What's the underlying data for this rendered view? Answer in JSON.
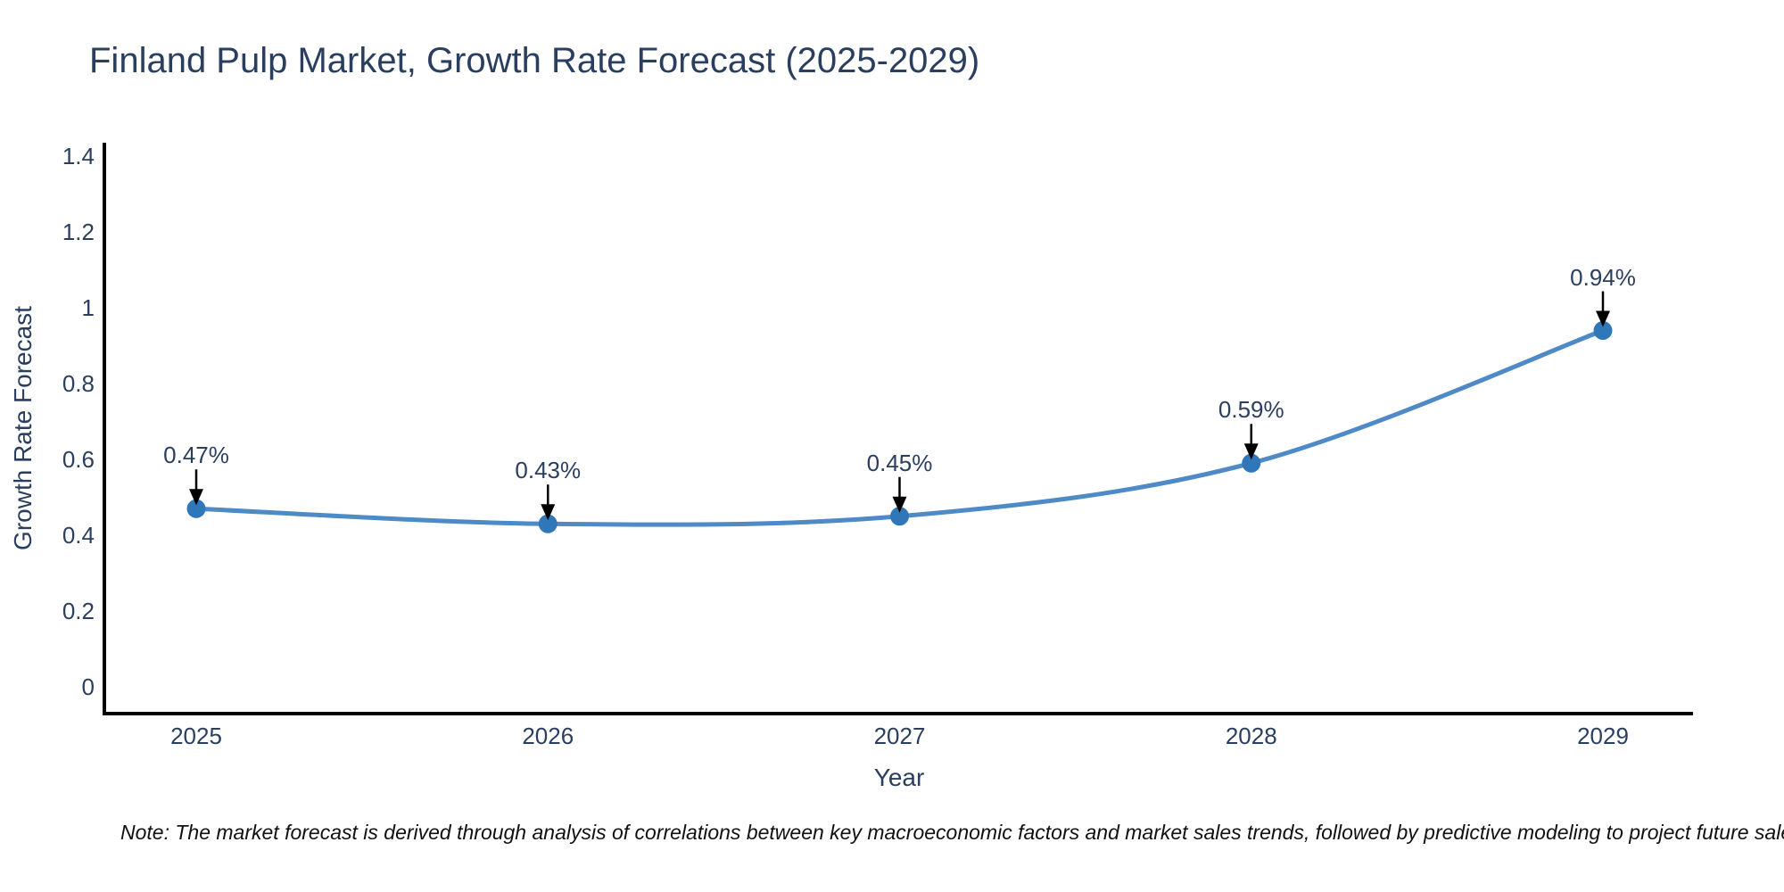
{
  "note": "Note: The market forecast is derived through analysis of correlations between key macroeconomic factors and market sales trends, followed by predictive modeling to project future sales",
  "chart_data": {
    "type": "line",
    "title": "Finland Pulp Market, Growth Rate Forecast (2025-2029)",
    "xlabel": "Year",
    "ylabel": "Growth Rate Forecast",
    "categories": [
      "2025",
      "2026",
      "2027",
      "2028",
      "2029"
    ],
    "values": [
      0.47,
      0.43,
      0.45,
      0.59,
      0.94
    ],
    "point_labels": [
      "0.47%",
      "0.43%",
      "0.45%",
      "0.59%",
      "0.94%"
    ],
    "ylim": [
      0,
      1.4
    ],
    "yticks": {
      "values": [
        0,
        0.2,
        0.4,
        0.6,
        0.8,
        1,
        1.2,
        1.4
      ],
      "labels": [
        "0",
        "0.2",
        "0.4",
        "0.6",
        "0.8",
        "1",
        "1.2",
        "1.4"
      ]
    },
    "line_shape": "spline",
    "grid": false,
    "legend": "none",
    "annotations": "arrow-down-to-point",
    "colors": {
      "line": "#4e8ac6",
      "marker": "#2f77b8",
      "axis": "#000000",
      "text": "#2a3f5f",
      "arrow": "#000000",
      "background": "#ffffff"
    }
  }
}
